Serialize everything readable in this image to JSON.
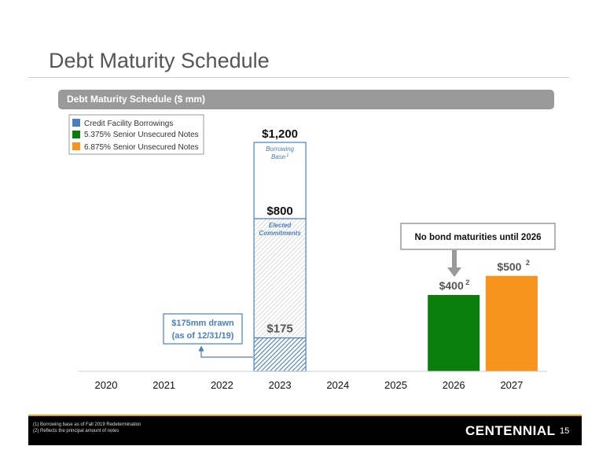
{
  "slide": {
    "title": "Debt Maturity Schedule",
    "subheader": "Debt Maturity Schedule ($ mm)",
    "page_number": "15",
    "logo_text": "CENTENNIAL"
  },
  "footnotes": [
    "(1)    Borrowing base as of Fall 2019 Redetermination",
    "(2)    Reflects the principal amount of notes"
  ],
  "colors": {
    "credit_facility": "#4a7fc1",
    "senior_5375": "#0a7d0a",
    "senior_6875": "#f7941d",
    "accent_gold": "#e8a317"
  },
  "chart_data": {
    "type": "bar",
    "categories": [
      "2020",
      "2021",
      "2022",
      "2023",
      "2024",
      "2025",
      "2026",
      "2027"
    ],
    "series": [
      {
        "name": "Credit Facility Borrowings",
        "values": [
          0,
          0,
          0,
          175,
          0,
          0,
          0,
          0
        ]
      },
      {
        "name": "5.375% Senior Unsecured Notes",
        "values": [
          0,
          0,
          0,
          0,
          0,
          0,
          400,
          0
        ]
      },
      {
        "name": "6.875% Senior Unsecured Notes",
        "values": [
          0,
          0,
          0,
          0,
          0,
          0,
          0,
          500
        ]
      }
    ],
    "credit_facility_capacity": {
      "elected_commitments": 800,
      "borrowing_base": 1200
    },
    "data_labels": {
      "borrowing_base": "$1,200",
      "elected_commitments": "$800",
      "drawn": "$175",
      "notes_2026": "$400",
      "notes_2027": "$500"
    },
    "annotations": {
      "borrowing_base_label": "Borrowing",
      "borrowing_base_label2": "Base",
      "borrowing_base_sup": "1",
      "elected_label": "Elected",
      "elected_label2": "Commitments",
      "drawn_callout_line1": "$175mm drawn",
      "drawn_callout_line2": "(as of 12/31/19)",
      "notes_callout": "No bond maturities until 2026",
      "note_sup": "2"
    },
    "legend": [
      "Credit Facility Borrowings",
      "5.375% Senior Unsecured Notes",
      "6.875% Senior Unsecured Notes"
    ],
    "legend_position": "top-left",
    "ylim": [
      0,
      1200
    ],
    "grid": false
  }
}
